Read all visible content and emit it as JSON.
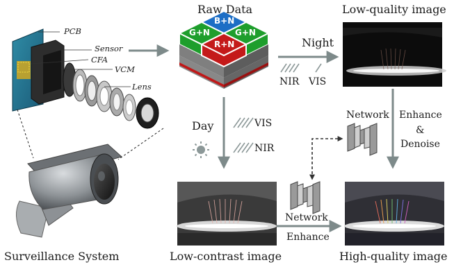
{
  "titles": {
    "raw_data": "Raw Data",
    "low_quality": "Low-quality image",
    "low_contrast": "Low-contrast image",
    "high_quality": "High-quality image",
    "surveillance": "Surveillance System"
  },
  "camera_parts": [
    "PCB",
    "Sensor",
    "CFA",
    "VCM",
    "Lens"
  ],
  "cfa_cells": {
    "top": "B+N",
    "left": "G+N",
    "right": "G+N",
    "bottom": "R+N"
  },
  "night_branch": {
    "label": "Night",
    "nir": "NIR",
    "vis": "VIS"
  },
  "day_branch": {
    "label": "Day",
    "vis": "VIS",
    "nir": "NIR"
  },
  "network_top": {
    "network": "Network",
    "enhance": "Enhance",
    "amp": "&",
    "denoise": "Denoise"
  },
  "network_bottom": {
    "network": "Network",
    "enhance": "Enhance"
  },
  "colors": {
    "arrow": "#7d8a8a",
    "blue_cell": "#1d6ec5",
    "green_cell": "#1e9e2c",
    "red_cell": "#c41a1a"
  }
}
